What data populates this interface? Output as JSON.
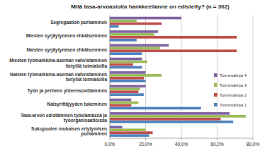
{
  "chart_data": {
    "type": "bar",
    "orientation": "horizontal",
    "title": "Mitä tasa-arvoasioita hankkeellanne on edistetty? (n = 362)",
    "categories": [
      "Segregaation purkaminen",
      "Miesten syrjäytymisen ehkäiseminen",
      "Naisten syrjäytymisen ehkäiseminen",
      "Miesten työmarkkina-aseman vahvistaminen tietyillä toimialoilla",
      "Naisten työmarkkina-aseman vahvistaminen tietyillä toimialoilla",
      "Työn ja perheen yhteensovittaminen",
      "Naisyrittäjyyden tukeminen",
      "Tasa-arvon edistäminen työelämässä ja työorganisaatioissa",
      "Sukupuolen mukaisen eriytymisen purkaminen"
    ],
    "series": [
      {
        "name": "Toimintalinja 1",
        "color": "#4f81bd",
        "values": [
          5,
          15,
          18,
          18,
          20,
          19,
          51,
          69,
          22
        ]
      },
      {
        "name": "Toimintalinja 2",
        "color": "#c0504d",
        "values": [
          29,
          71,
          71,
          13,
          19,
          16,
          12,
          62,
          24
        ]
      },
      {
        "name": "Toimintalinja 3",
        "color": "#9bbb59",
        "values": [
          15,
          25,
          28,
          21,
          29,
          17,
          16,
          76,
          20
        ]
      },
      {
        "name": "Toimintalinja 4",
        "color": "#8064a2",
        "values": [
          40,
          27,
          33,
          18,
          20,
          20,
          12,
          67,
          7
        ]
      }
    ],
    "xlim": [
      0,
      80
    ],
    "xticks": [
      {
        "value": 0,
        "label": "0,0%"
      },
      {
        "value": 20,
        "label": "20,0%"
      },
      {
        "value": 40,
        "label": "40,0%"
      },
      {
        "value": 60,
        "label": "60,0%"
      },
      {
        "value": 80,
        "label": "80,0%"
      }
    ],
    "grid": true,
    "legend": "right"
  }
}
